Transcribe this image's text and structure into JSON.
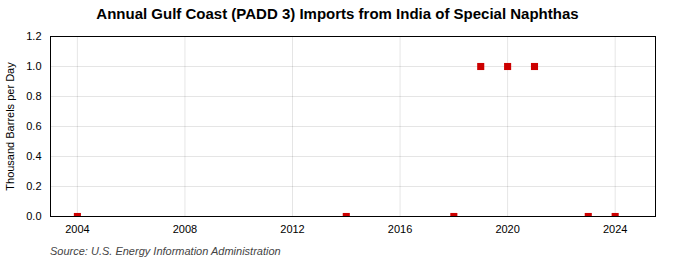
{
  "chart_data": {
    "type": "scatter",
    "title": "Annual Gulf Coast (PADD 3) Imports from India of Special Naphthas",
    "y_label": "Thousand Barrels per Day",
    "annotations": [
      "Source: U.S. Energy Information Administration"
    ],
    "x": [
      2004,
      2014,
      2018,
      2019,
      2020,
      2021,
      2023,
      2024
    ],
    "values": [
      0.0,
      0.0,
      0.0,
      1.0,
      1.0,
      1.0,
      0.0,
      0.0
    ],
    "color": "#cc0000",
    "marker": "square",
    "xlim": [
      2003,
      2025.5
    ],
    "xticks": [
      2004,
      2008,
      2012,
      2016,
      2020,
      2024
    ],
    "ylim": [
      0.0,
      1.2
    ],
    "yticks": [
      {
        "value": 0.0,
        "label": "0.0"
      },
      0.2,
      0.4,
      0.6,
      0.8,
      {
        "value": 1.0,
        "label": "1.0"
      },
      1.2
    ],
    "grid": true
  }
}
